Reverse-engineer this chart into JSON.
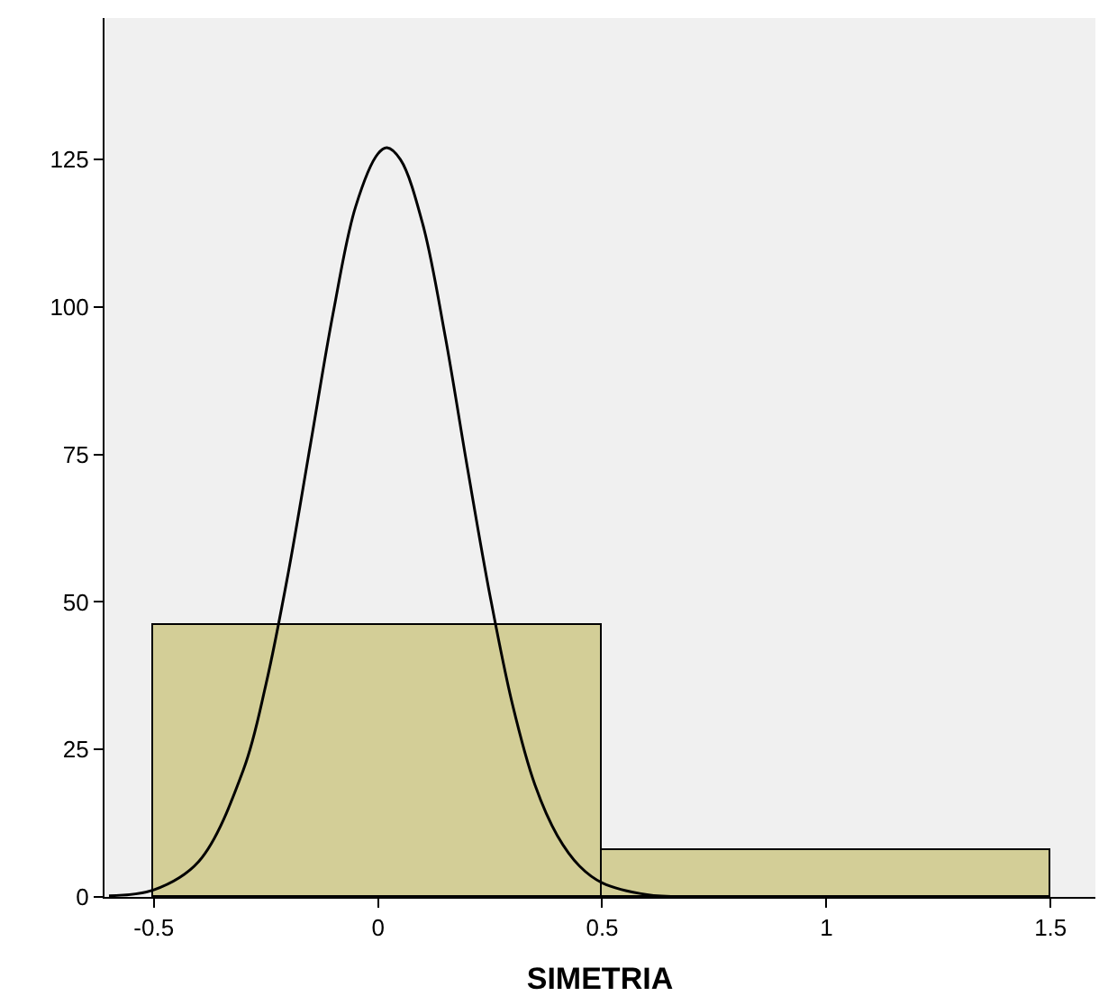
{
  "chart_data": {
    "type": "histogram",
    "xlabel": "SIMETRIA",
    "bins": [
      -0.5,
      0.5,
      1.5
    ],
    "values": [
      46,
      8
    ],
    "color": "#d3ce97",
    "series": [
      {
        "type": "line",
        "color": "#000000",
        "x": [
          -0.6,
          -0.5,
          -0.4,
          -0.3,
          -0.25,
          -0.2,
          -0.15,
          -0.1,
          -0.05,
          0,
          0.02,
          0.05,
          0.1,
          0.15,
          0.2,
          0.25,
          0.3,
          0.35,
          0.4,
          0.45,
          0.5,
          0.6,
          0.7,
          0.8
        ],
        "values": [
          0.2,
          1.2,
          6,
          21.6,
          36,
          55,
          77,
          99,
          117,
          126,
          127,
          125,
          114,
          95,
          72.5,
          51,
          32.6,
          19,
          10.4,
          5.2,
          2.4,
          0.4,
          0,
          0
        ]
      }
    ],
    "xlim": [
      -0.61,
      1.6
    ],
    "xticks": [
      -0.5,
      0,
      0.5,
      1,
      1.5
    ],
    "ylim": [
      0,
      149
    ],
    "yticks": [
      0,
      25,
      50,
      75,
      100,
      125
    ],
    "grid": false
  }
}
